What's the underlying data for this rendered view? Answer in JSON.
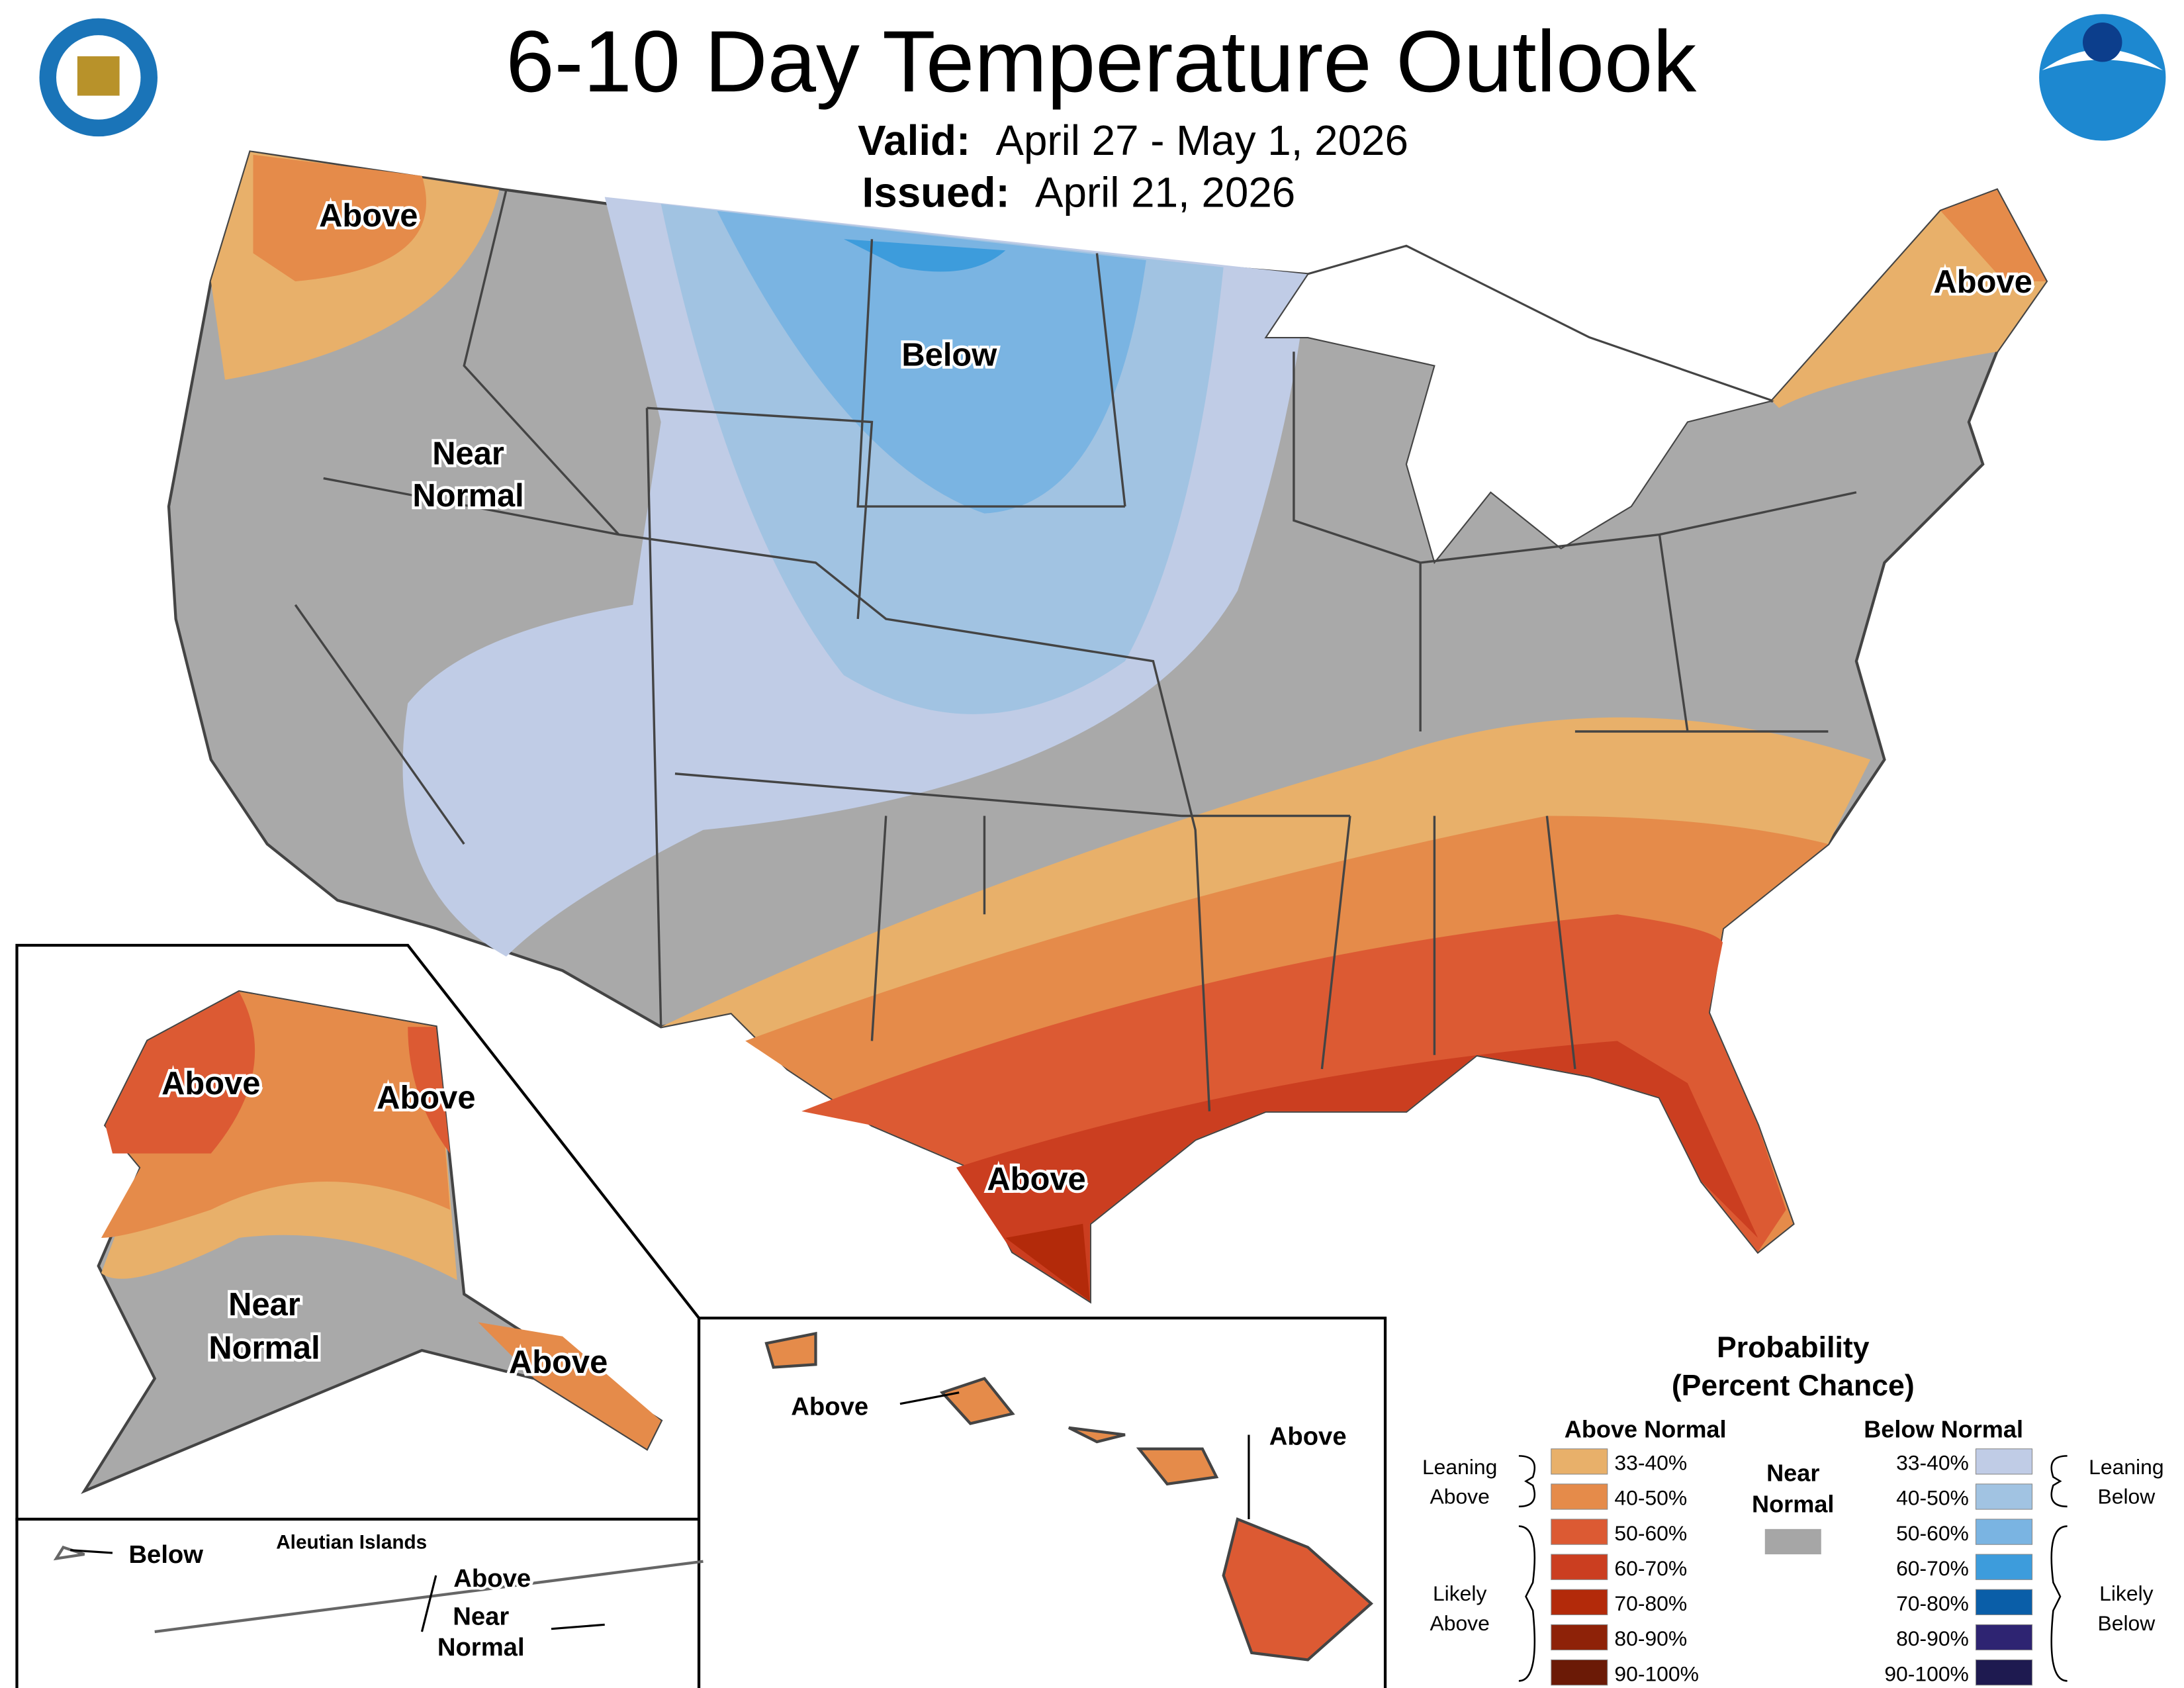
{
  "header": {
    "title": "6-10 Day Temperature Outlook",
    "valid_label": "Valid:",
    "valid": "April 27 - May 1, 2026",
    "issued_label": "Issued:",
    "issued": "April 21, 2026"
  },
  "map_labels": [
    {
      "lines": [
        "Above"
      ]
    },
    {
      "lines": [
        "Near",
        "Normal"
      ]
    },
    {
      "lines": [
        "Below"
      ]
    },
    {
      "lines": [
        "Above"
      ]
    },
    {
      "lines": [
        "Above"
      ]
    },
    {
      "lines": [
        "Above"
      ]
    },
    {
      "lines": [
        "Above"
      ]
    },
    {
      "lines": [
        "Near",
        "Normal"
      ]
    },
    {
      "lines": [
        "Above"
      ]
    },
    {
      "lines": [
        "Below"
      ]
    },
    {
      "lines": [
        "Above"
      ]
    },
    {
      "lines": [
        "Near",
        "Normal"
      ]
    },
    {
      "lines": [
        "Above"
      ]
    },
    {
      "lines": [
        "Above"
      ]
    }
  ],
  "aleutian_title": "Aleutian Islands",
  "legend": {
    "title": [
      "Probability",
      "(Percent Chance)"
    ],
    "above_header": "Above Normal",
    "below_header": "Below Normal",
    "near": {
      "lines": [
        "Near",
        "Normal"
      ],
      "color": "#a6a6a6"
    },
    "above_bins": [
      {
        "label": "33-40%",
        "color": "#e8b06a"
      },
      {
        "label": "40-50%",
        "color": "#e58b4a"
      },
      {
        "label": "50-60%",
        "color": "#dc5a33"
      },
      {
        "label": "60-70%",
        "color": "#cb3e20"
      },
      {
        "label": "70-80%",
        "color": "#b32a0a"
      },
      {
        "label": "80-90%",
        "color": "#8e2208"
      },
      {
        "label": "90-100%",
        "color": "#6b1a06"
      }
    ],
    "below_bins": [
      {
        "label": "33-40%",
        "color": "#c0cce6"
      },
      {
        "label": "40-50%",
        "color": "#a1c3e2"
      },
      {
        "label": "50-60%",
        "color": "#7ab4e2"
      },
      {
        "label": "60-70%",
        "color": "#3d9cdc"
      },
      {
        "label": "70-80%",
        "color": "#0a5ea8"
      },
      {
        "label": "80-90%",
        "color": "#2e2472"
      },
      {
        "label": "90-100%",
        "color": "#1e1a50"
      }
    ],
    "leaning_above": [
      "Leaning",
      "Above"
    ],
    "likely_above": [
      "Likely",
      "Above"
    ],
    "leaning_below": [
      "Leaning",
      "Below"
    ],
    "likely_below": [
      "Likely",
      "Below"
    ]
  }
}
